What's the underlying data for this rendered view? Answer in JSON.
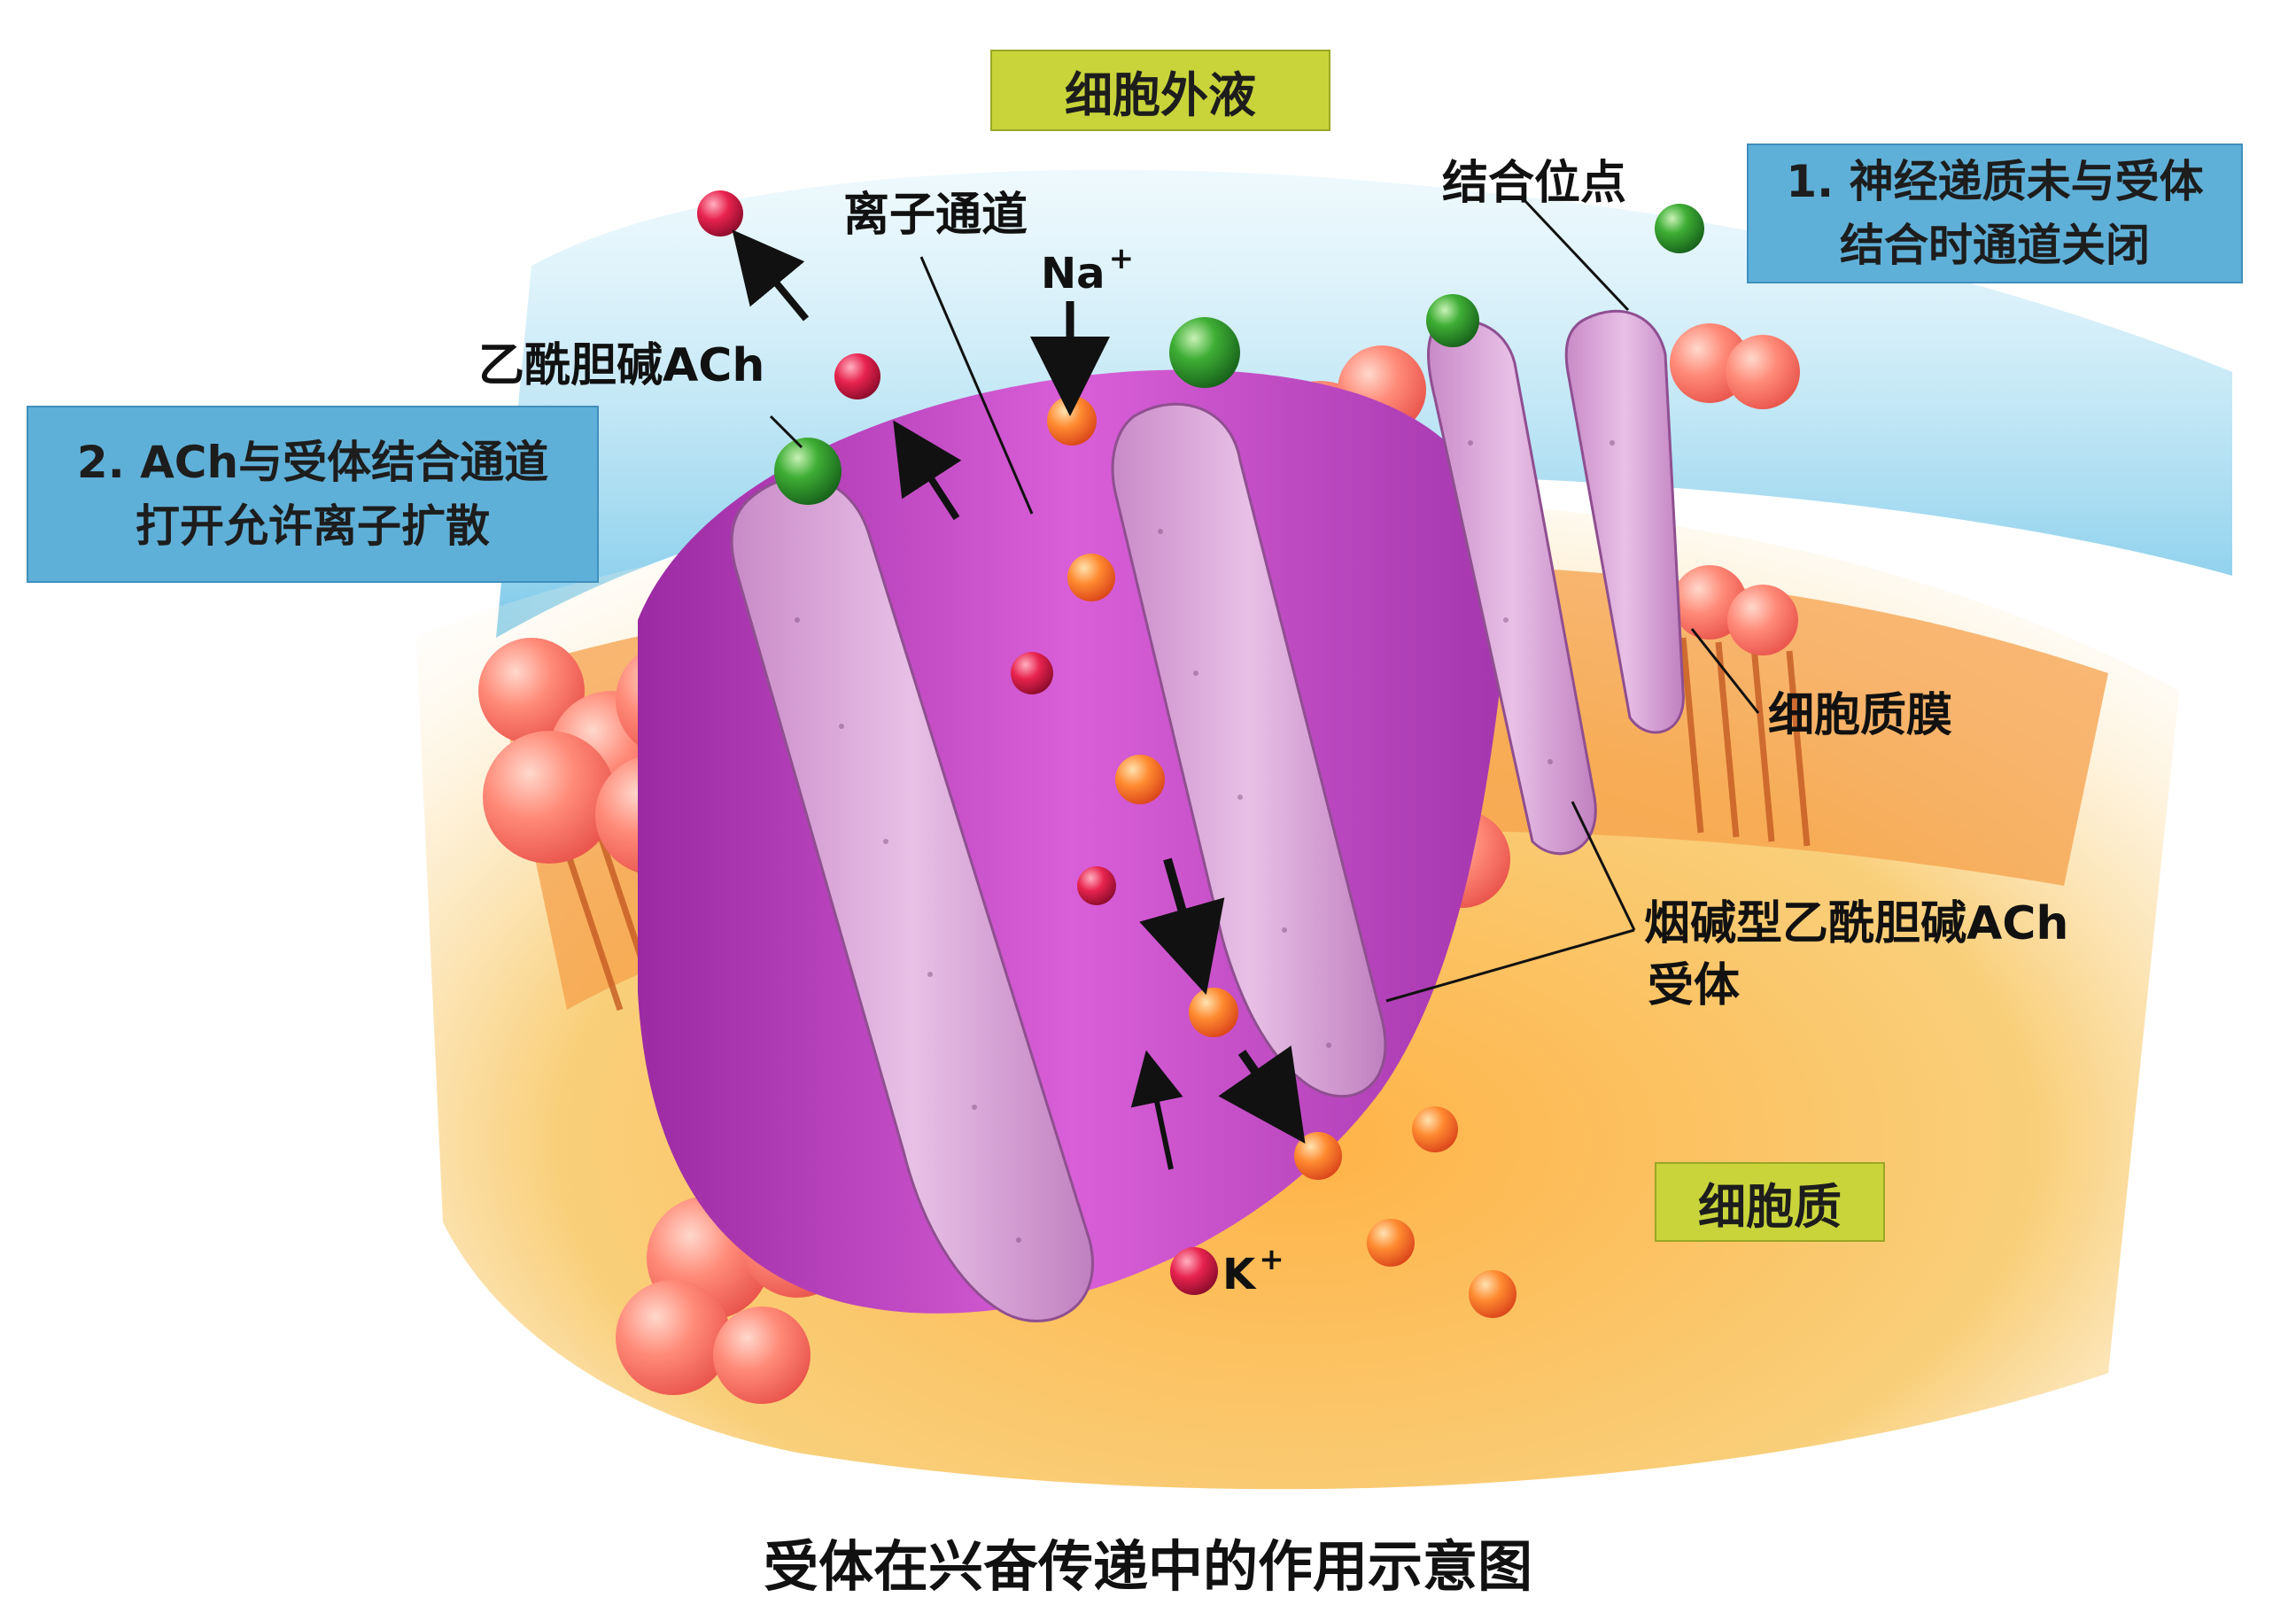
{
  "labels": {
    "extracellular": "细胞外液",
    "cytoplasm": "细胞质",
    "step1_line1": "1. 神经递质未与受体",
    "step1_line2": "结合时通道关闭",
    "step2_line1": "2. ACh与受体结合通道",
    "step2_line2": "打开允许离子扩散",
    "ion_channel": "离子通道",
    "binding_site": "结合位点",
    "acetylcholine": "乙酰胆碱ACh",
    "plasma_membrane": "细胞质膜",
    "receptor_line1": "烟碱型乙酰胆碱ACh",
    "receptor_line2": "受体",
    "na_ion": "Na",
    "k_ion": "K",
    "charge_plus": "+"
  },
  "caption": "受体在兴奋传递中的作用示意图",
  "colors": {
    "extracellular_fluid": "#8fd3ee",
    "cytoplasm": "#f7c56a",
    "phospholipid_head": "#ff7a6b",
    "channel_protein": "#c54fc6",
    "receptor_subunit": "#d8a4d6",
    "acetylcholine": "#2e9a2e",
    "na_ion": "#f47a2a",
    "k_ion": "#d81f4e",
    "label_green": "#c8d43a",
    "label_blue": "#5fb0d8"
  }
}
